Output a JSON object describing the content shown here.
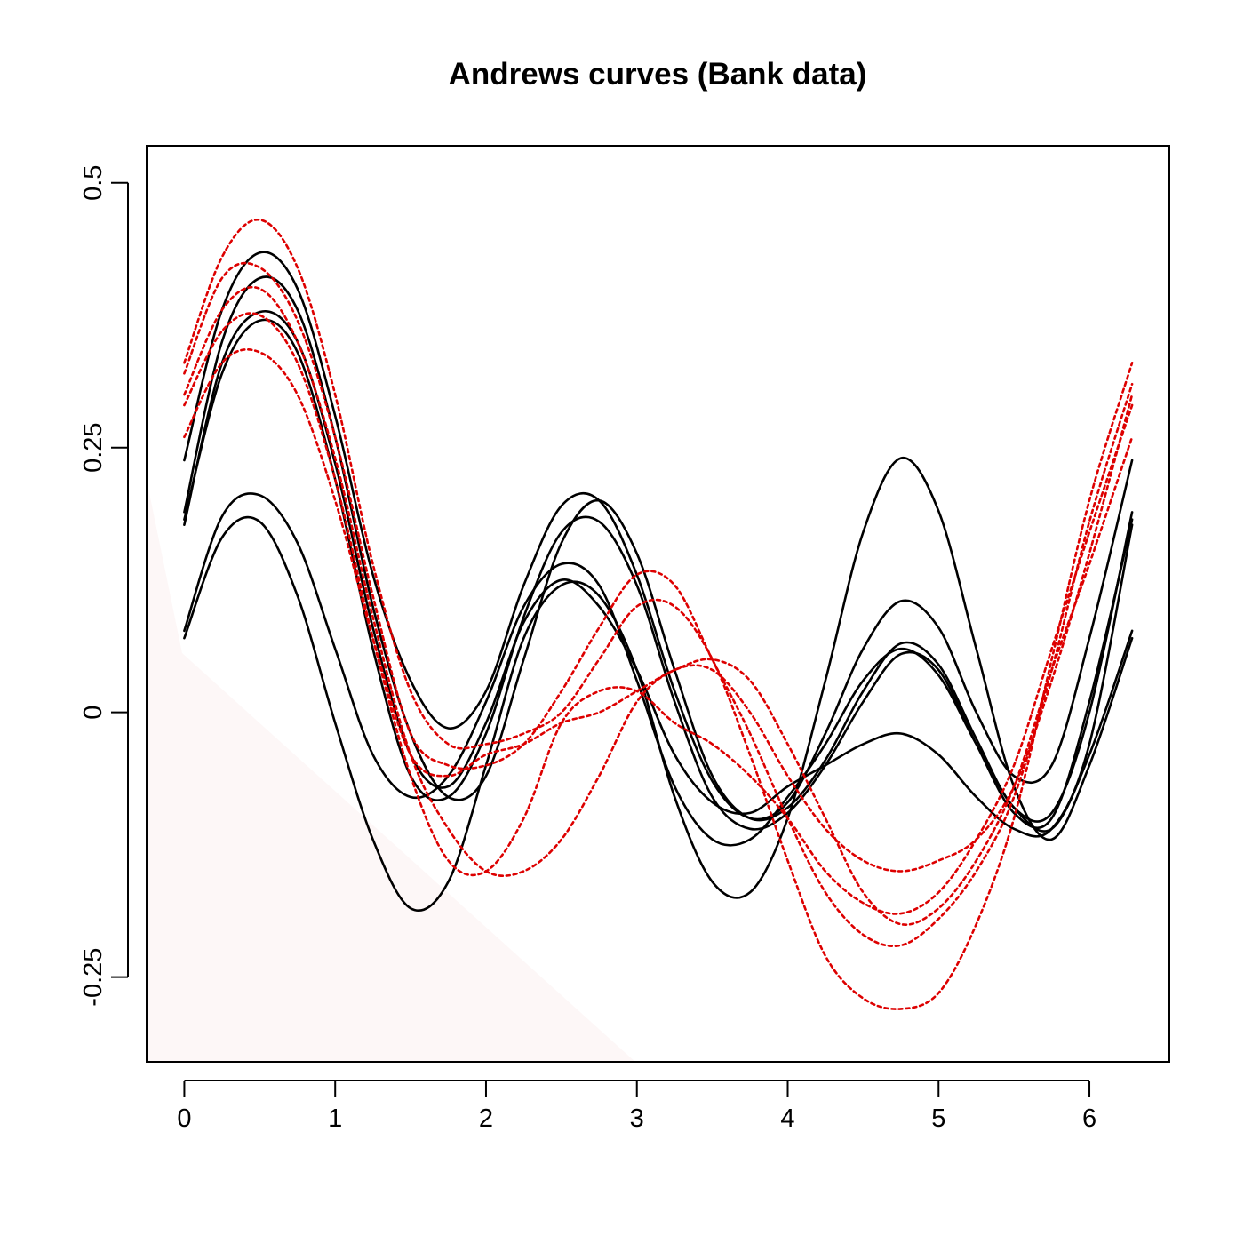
{
  "chart_data": {
    "type": "line",
    "title": "Andrews curves (Bank data)",
    "xlabel": "",
    "ylabel": "",
    "xlim": [
      -0.25,
      6.53
    ],
    "ylim": [
      -0.33,
      0.535
    ],
    "x_ticks": [
      0,
      1,
      2,
      3,
      4,
      5,
      6
    ],
    "x_tick_labels": [
      "0",
      "1",
      "2",
      "3",
      "4",
      "5",
      "6"
    ],
    "y_ticks": [
      -0.25,
      0,
      0.25,
      0.5
    ],
    "y_tick_labels": [
      "-0.25",
      "0",
      "0.25",
      "0.5"
    ],
    "grid": false,
    "legend": "none",
    "x_sample_points": [
      0,
      0.25,
      0.5,
      0.75,
      1.0,
      1.25,
      1.5,
      1.75,
      2.0,
      2.25,
      2.5,
      2.75,
      3.0,
      3.25,
      3.5,
      3.75,
      4.0,
      4.25,
      4.5,
      4.75,
      5.0,
      5.25,
      5.5,
      5.75,
      6.0,
      6.283
    ],
    "series": [
      {
        "group": "genuine",
        "color": "#000000",
        "dash": "solid",
        "values": [
          0.238,
          0.38,
          0.434,
          0.4,
          0.28,
          0.13,
          0.03,
          -0.015,
          0.02,
          0.12,
          0.195,
          0.2,
          0.13,
          0.02,
          -0.065,
          -0.1,
          -0.085,
          -0.02,
          0.06,
          0.105,
          0.08,
          0.0,
          -0.06,
          -0.05,
          0.07,
          0.238
        ]
      },
      {
        "group": "genuine",
        "color": "#000000",
        "dash": "solid",
        "values": [
          0.189,
          0.35,
          0.41,
          0.38,
          0.26,
          0.1,
          -0.02,
          -0.08,
          -0.06,
          0.05,
          0.16,
          0.2,
          0.15,
          0.04,
          -0.06,
          -0.1,
          -0.09,
          -0.045,
          0.02,
          0.065,
          0.045,
          -0.025,
          -0.09,
          -0.095,
          0.0,
          0.189
        ]
      },
      {
        "group": "genuine",
        "color": "#000000",
        "dash": "solid",
        "values": [
          0.182,
          0.32,
          0.37,
          0.34,
          0.22,
          0.06,
          -0.06,
          -0.08,
          -0.02,
          0.09,
          0.17,
          0.18,
          0.12,
          0.01,
          -0.08,
          -0.11,
          -0.095,
          -0.05,
          0.01,
          0.055,
          0.04,
          -0.03,
          -0.095,
          -0.1,
          0.01,
          0.182
        ]
      },
      {
        "group": "genuine",
        "color": "#000000",
        "dash": "solid",
        "values": [
          0.077,
          0.185,
          0.205,
          0.16,
          0.06,
          -0.04,
          -0.08,
          -0.06,
          0.01,
          0.1,
          0.14,
          0.12,
          0.03,
          -0.07,
          -0.12,
          -0.12,
          -0.08,
          -0.03,
          0.03,
          0.06,
          0.035,
          -0.03,
          -0.09,
          -0.11,
          -0.04,
          0.077
        ]
      },
      {
        "group": "genuine",
        "color": "#000000",
        "dash": "solid",
        "values": [
          0.07,
          0.165,
          0.18,
          0.11,
          -0.01,
          -0.12,
          -0.185,
          -0.16,
          -0.05,
          0.07,
          0.12,
          0.11,
          0.04,
          -0.08,
          -0.16,
          -0.17,
          -0.1,
          0.03,
          0.17,
          0.24,
          0.19,
          0.06,
          -0.07,
          -0.12,
          -0.05,
          0.07
        ]
      },
      {
        "group": "genuine",
        "color": "#000000",
        "dash": "solid",
        "values": [
          0.177,
          0.33,
          0.378,
          0.35,
          0.235,
          0.08,
          -0.04,
          -0.07,
          -0.01,
          0.085,
          0.125,
          0.1,
          0.04,
          -0.04,
          -0.085,
          -0.095,
          -0.07,
          -0.05,
          -0.03,
          -0.02,
          -0.04,
          -0.08,
          -0.11,
          -0.11,
          -0.03,
          0.177
        ]
      },
      {
        "group": "counterfeit",
        "color": "#dd0000",
        "dash": "dotted",
        "values": [
          0.33,
          0.43,
          0.465,
          0.42,
          0.3,
          0.14,
          0.02,
          -0.03,
          -0.03,
          -0.02,
          0.0,
          0.05,
          0.1,
          0.1,
          0.05,
          -0.04,
          -0.14,
          -0.23,
          -0.27,
          -0.28,
          -0.265,
          -0.2,
          -0.1,
          0.05,
          0.2,
          0.33
        ]
      },
      {
        "group": "counterfeit",
        "color": "#dd0000",
        "dash": "dotted",
        "values": [
          0.32,
          0.41,
          0.42,
          0.37,
          0.26,
          0.11,
          -0.02,
          -0.05,
          -0.05,
          -0.03,
          0.02,
          0.08,
          0.13,
          0.12,
          0.05,
          -0.02,
          -0.1,
          -0.17,
          -0.21,
          -0.22,
          -0.195,
          -0.15,
          -0.08,
          0.04,
          0.18,
          0.31
        ]
      },
      {
        "group": "counterfeit",
        "color": "#dd0000",
        "dash": "dotted",
        "values": [
          0.3,
          0.38,
          0.4,
          0.35,
          0.24,
          0.09,
          -0.04,
          -0.11,
          -0.15,
          -0.15,
          -0.12,
          -0.06,
          0.01,
          0.04,
          0.04,
          0.0,
          -0.06,
          -0.11,
          -0.14,
          -0.15,
          -0.14,
          -0.12,
          -0.07,
          0.03,
          0.15,
          0.3
        ]
      },
      {
        "group": "counterfeit",
        "color": "#dd0000",
        "dash": "dotted",
        "values": [
          0.29,
          0.36,
          0.375,
          0.33,
          0.22,
          0.07,
          -0.06,
          -0.14,
          -0.15,
          -0.1,
          -0.01,
          0.02,
          0.02,
          -0.01,
          -0.03,
          -0.06,
          -0.1,
          -0.15,
          -0.18,
          -0.19,
          -0.17,
          -0.12,
          -0.05,
          0.06,
          0.17,
          0.29
        ]
      },
      {
        "group": "counterfeit",
        "color": "#dd0000",
        "dash": "dotted",
        "values": [
          0.26,
          0.33,
          0.34,
          0.3,
          0.2,
          0.07,
          -0.04,
          -0.06,
          -0.04,
          -0.03,
          -0.01,
          0.0,
          0.02,
          0.04,
          0.05,
          0.03,
          -0.03,
          -0.1,
          -0.17,
          -0.2,
          -0.185,
          -0.14,
          -0.07,
          0.04,
          0.14,
          0.26
        ]
      }
    ]
  }
}
